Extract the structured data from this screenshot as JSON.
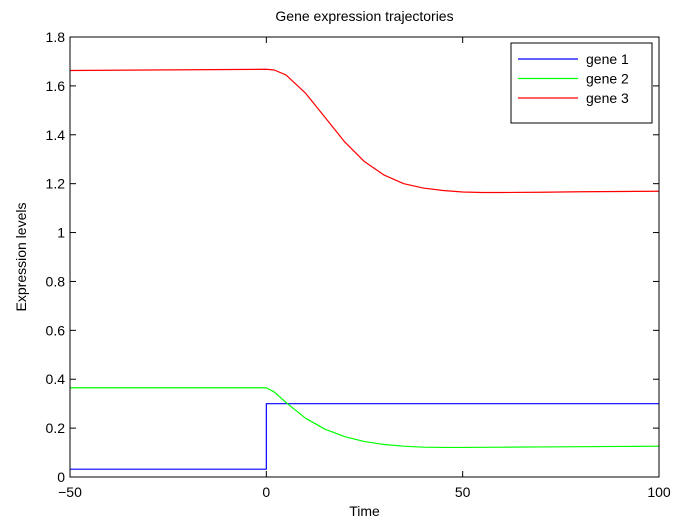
{
  "chart_data": {
    "type": "line",
    "title": "Gene expression trajectories",
    "xlabel": "Time",
    "ylabel": "Expression levels",
    "xlim": [
      -50,
      100
    ],
    "ylim": [
      0,
      1.8
    ],
    "xticks": [
      -50,
      0,
      50,
      100
    ],
    "xtick_labels": [
      "−50",
      "0",
      "50",
      "100"
    ],
    "yticks": [
      0,
      0.2,
      0.4,
      0.6,
      0.8,
      1,
      1.2,
      1.4,
      1.6,
      1.8
    ],
    "ytick_labels": [
      "0",
      "0.2",
      "0.4",
      "0.6",
      "0.8",
      "1",
      "1.2",
      "1.4",
      "1.6",
      "1.8"
    ],
    "grid": false,
    "legend_position": "top-right",
    "series": [
      {
        "name": "gene 1",
        "color": "#0000ff",
        "x": [
          -50,
          0,
          0,
          100
        ],
        "y": [
          0.032,
          0.032,
          0.3,
          0.3
        ]
      },
      {
        "name": "gene 2",
        "color": "#00ff00",
        "x": [
          -50,
          0,
          2,
          5,
          10,
          15,
          20,
          25,
          30,
          35,
          40,
          45,
          50,
          60,
          70,
          80,
          90,
          100
        ],
        "y": [
          0.365,
          0.365,
          0.348,
          0.305,
          0.24,
          0.195,
          0.165,
          0.145,
          0.133,
          0.126,
          0.122,
          0.121,
          0.121,
          0.122,
          0.123,
          0.124,
          0.125,
          0.126
        ]
      },
      {
        "name": "gene 3",
        "color": "#ff0000",
        "x": [
          -50,
          0,
          2,
          5,
          10,
          15,
          20,
          25,
          30,
          35,
          40,
          45,
          50,
          55,
          60,
          70,
          80,
          90,
          100
        ],
        "y": [
          1.663,
          1.668,
          1.665,
          1.645,
          1.57,
          1.47,
          1.37,
          1.29,
          1.235,
          1.2,
          1.182,
          1.172,
          1.166,
          1.164,
          1.164,
          1.165,
          1.167,
          1.168,
          1.169
        ]
      }
    ]
  }
}
